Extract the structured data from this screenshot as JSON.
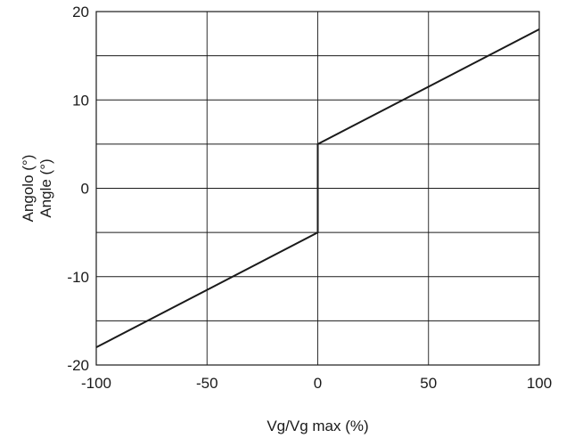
{
  "chart_data": {
    "type": "line",
    "xlabel": "Vg/Vg max (%)",
    "ylabel": [
      "Angolo (°)",
      "Angle (°)"
    ],
    "xlim": [
      -100,
      100
    ],
    "ylim": [
      -20,
      20
    ],
    "x_ticks": [
      -100,
      -50,
      0,
      50,
      100
    ],
    "y_ticks": [
      -20,
      -10,
      0,
      10,
      20
    ],
    "x_ticks_labels": [
      "-100",
      "-50",
      "0",
      "50",
      "100"
    ],
    "y_ticks_labels": [
      "-20",
      "-10",
      "0",
      "10",
      "20"
    ],
    "x_grid": [
      -100,
      -50,
      0,
      50,
      100
    ],
    "y_grid": [
      -20,
      -15,
      -10,
      -5,
      0,
      5,
      10,
      15,
      20
    ],
    "grid": true,
    "series": [
      {
        "x": [
          -100,
          0,
          0,
          100
        ],
        "y": [
          -18,
          -5,
          5,
          18
        ]
      }
    ]
  }
}
